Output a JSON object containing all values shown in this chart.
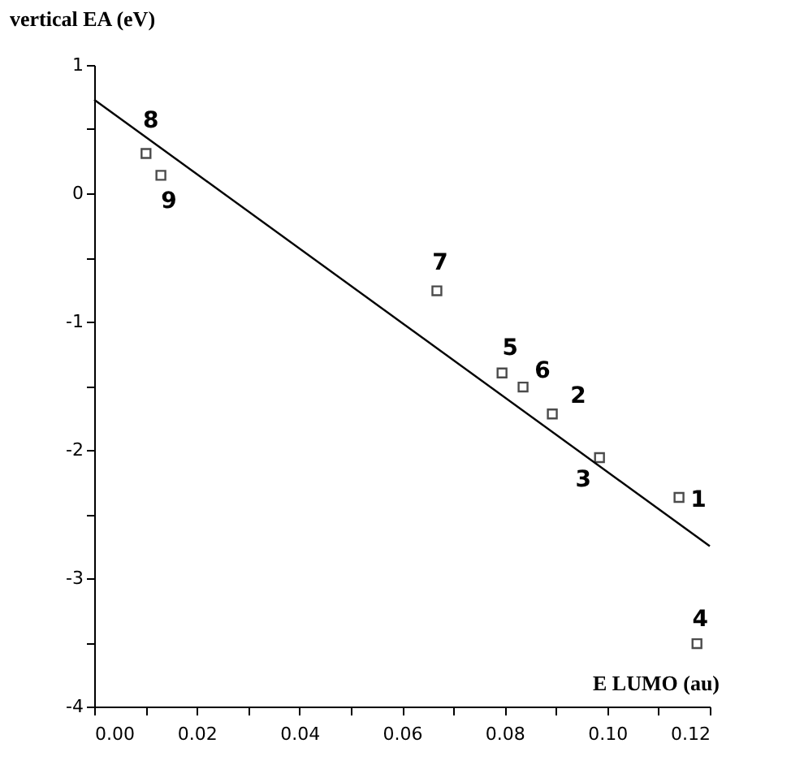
{
  "chart_data": {
    "type": "scatter",
    "xlabel": "E LUMO (au)",
    "ylabel": "vertical EA (eV)",
    "xlim": [
      0,
      0.12
    ],
    "ylim": [
      -4,
      1
    ],
    "xticks": [
      {
        "value": 0,
        "label": "0.00"
      },
      {
        "value": 0.01,
        "label": null
      },
      {
        "value": 0.02,
        "label": "0.02"
      },
      {
        "value": 0.03,
        "label": null
      },
      {
        "value": 0.04,
        "label": "0.04"
      },
      {
        "value": 0.05,
        "label": null
      },
      {
        "value": 0.06,
        "label": "0.06"
      },
      {
        "value": 0.07,
        "label": null
      },
      {
        "value": 0.08,
        "label": "0.08"
      },
      {
        "value": 0.09,
        "label": null
      },
      {
        "value": 0.1,
        "label": "0.10"
      },
      {
        "value": 0.11,
        "label": null
      },
      {
        "value": 0.12,
        "label": "0.12"
      }
    ],
    "yticks": [
      -4,
      {
        "value": -3.5,
        "label": null
      },
      -3,
      {
        "value": -2.5,
        "label": null
      },
      -2,
      {
        "value": -1.5,
        "label": null
      },
      -1,
      {
        "value": -0.5,
        "label": null
      },
      0,
      {
        "value": 0.5,
        "label": null
      },
      1
    ],
    "grid": false,
    "series": [
      {
        "marker": "square",
        "color": "#000000",
        "x": [
          0.0101,
          0.013,
          0.0668,
          0.0795,
          0.0836,
          0.0893,
          0.0985,
          0.114,
          0.1175
        ],
        "values": [
          0.31,
          0.14,
          -0.76,
          -1.4,
          -1.51,
          -1.72,
          -2.06,
          -2.37,
          -3.51
        ]
      },
      {
        "type": "line",
        "color": "#000000",
        "line_style": "solid",
        "x": [
          0,
          0.12
        ],
        "values": [
          0.73,
          -2.75
        ]
      }
    ],
    "annotations": [
      {
        "text": "8",
        "x": 0.0101,
        "y": 0.31
      },
      {
        "text": "9",
        "x": 0.013,
        "y": 0.14
      },
      {
        "text": "7",
        "x": 0.0668,
        "y": -0.76
      },
      {
        "text": "5",
        "x": 0.0795,
        "y": -1.4
      },
      {
        "text": "6",
        "x": 0.0836,
        "y": -1.51
      },
      {
        "text": "2",
        "x": 0.0893,
        "y": -1.72
      },
      {
        "text": "3",
        "x": 0.0985,
        "y": -2.06
      },
      {
        "text": "1",
        "x": 0.114,
        "y": -2.37
      },
      {
        "text": "4",
        "x": 0.1175,
        "y": -3.51
      }
    ]
  }
}
